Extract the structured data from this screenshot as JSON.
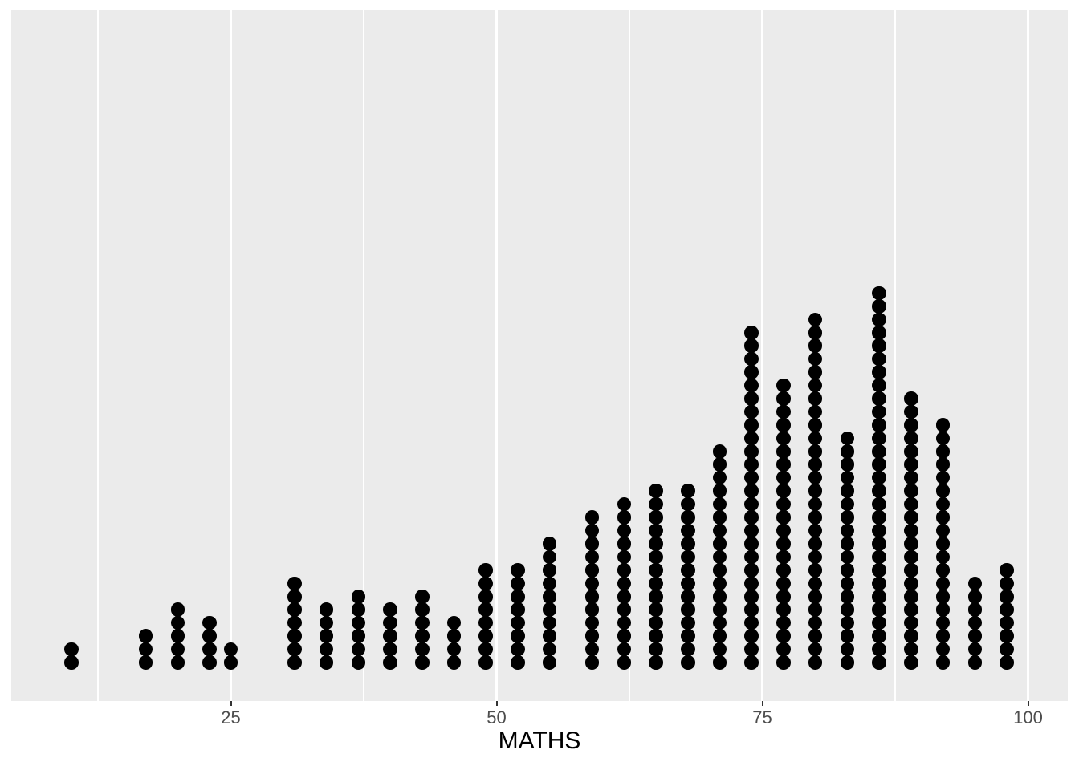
{
  "chart_data": {
    "type": "dotplot",
    "title": "",
    "xlabel": "MATHS",
    "ylabel": "",
    "x": [
      10,
      17,
      20,
      23,
      25,
      31,
      34,
      37,
      40,
      43,
      46,
      49,
      52,
      55,
      59,
      62,
      65,
      68,
      71,
      74,
      77,
      80,
      83,
      86,
      89,
      92,
      95,
      98
    ],
    "counts": [
      2,
      3,
      5,
      4,
      2,
      7,
      5,
      6,
      5,
      6,
      4,
      8,
      8,
      10,
      12,
      13,
      14,
      14,
      17,
      26,
      22,
      27,
      18,
      29,
      21,
      19,
      7,
      8
    ],
    "total_observations": 322,
    "x_tick_values": [
      25,
      50,
      75,
      100
    ],
    "x_tick_labels": [
      "25",
      "50",
      "75",
      "100"
    ],
    "x_minor_gridlines": [
      12.5,
      37.5,
      62.5,
      87.5
    ],
    "xlim_shown": [
      4.3,
      103.8
    ],
    "grid": "vertical-only",
    "legend_position": "none"
  },
  "colors": {
    "page_background": "#FFFFFF",
    "panel_background": "#EBEBEB",
    "major_gridline": "#FFFFFF",
    "minor_gridline": "#FFFFFF",
    "dot_fill": "#000000",
    "tick_mark": "#333333",
    "tick_label": "#4D4D4D",
    "axis_title": "#000000"
  }
}
